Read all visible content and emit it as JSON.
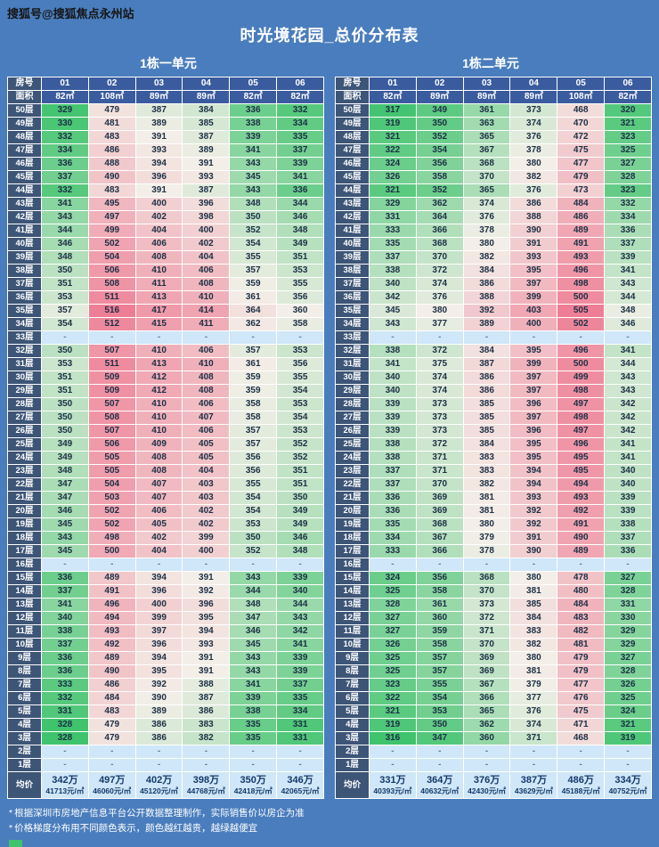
{
  "watermark": "搜狐号@搜狐焦点永州站",
  "title": "时光境花园_总价分布表",
  "notes": [
    {
      "bullet": "*",
      "text": "根据深圳市房地产信息平台公开数据整理制作，实际销售价以房企为准"
    },
    {
      "bullet": "*",
      "text": "价格梯度分布用不同颜色表示，颜色越红越贵，越绿越便宜"
    }
  ],
  "colors": {
    "page_bg": "#4a7dbd",
    "header_bg": "#3a5c9e",
    "floor_bg": "#3d5577",
    "empty_cell_bg": "#cfe7f8",
    "avg_bg": "#cfe7f8",
    "avg_text": "#14386c",
    "cell_text": "#1c2f45",
    "grad_low": "#3fc36d",
    "grad_mid": "#f3efe8",
    "grad_high": "#ee7e95",
    "border": "#ffffff",
    "note_text": "#ffffff",
    "watermark_text": "#151515"
  },
  "chart_data": [
    {
      "type": "heatmap",
      "title": "1栋一单元",
      "row_header": "房号",
      "area_header": "面积",
      "columns": [
        "01",
        "02",
        "03",
        "04",
        "05",
        "06"
      ],
      "area_labels": [
        "82㎡",
        "108㎡",
        "89㎡",
        "89㎡",
        "82㎡",
        "82㎡"
      ],
      "areas_sqm": [
        82,
        108,
        89,
        89,
        82,
        82
      ],
      "empty_placeholder": "-",
      "value_unit": "万",
      "floors": [
        "50层",
        "49层",
        "48层",
        "47层",
        "46层",
        "45层",
        "44层",
        "43层",
        "42层",
        "41层",
        "40层",
        "39层",
        "38层",
        "37层",
        "36层",
        "35层",
        "34层",
        "33层",
        "32层",
        "31层",
        "30层",
        "29层",
        "28层",
        "27层",
        "26层",
        "25层",
        "24层",
        "23层",
        "22层",
        "21层",
        "20层",
        "19层",
        "18层",
        "17层",
        "16层",
        "15层",
        "14层",
        "13层",
        "12层",
        "11层",
        "10层",
        "9层",
        "8层",
        "7层",
        "6层",
        "5层",
        "4层",
        "3层",
        "2层",
        "1层"
      ],
      "values": [
        [
          329,
          479,
          387,
          384,
          336,
          332
        ],
        [
          330,
          481,
          389,
          385,
          338,
          334
        ],
        [
          332,
          483,
          391,
          387,
          339,
          335
        ],
        [
          334,
          486,
          393,
          389,
          341,
          337
        ],
        [
          336,
          488,
          394,
          391,
          343,
          339
        ],
        [
          337,
          490,
          396,
          393,
          345,
          341
        ],
        [
          332,
          483,
          391,
          387,
          343,
          336
        ],
        [
          341,
          495,
          400,
          396,
          348,
          344
        ],
        [
          343,
          497,
          402,
          398,
          350,
          346
        ],
        [
          344,
          499,
          404,
          400,
          352,
          348
        ],
        [
          346,
          502,
          406,
          402,
          354,
          349
        ],
        [
          348,
          504,
          408,
          404,
          355,
          351
        ],
        [
          350,
          506,
          410,
          406,
          357,
          353
        ],
        [
          351,
          508,
          411,
          408,
          359,
          355
        ],
        [
          353,
          511,
          413,
          410,
          361,
          356
        ],
        [
          357,
          516,
          417,
          414,
          364,
          360
        ],
        [
          354,
          512,
          415,
          411,
          362,
          358
        ],
        null,
        [
          350,
          507,
          410,
          406,
          357,
          353
        ],
        [
          353,
          511,
          413,
          410,
          361,
          356
        ],
        [
          351,
          509,
          412,
          408,
          359,
          355
        ],
        [
          351,
          509,
          412,
          408,
          359,
          354
        ],
        [
          350,
          507,
          410,
          406,
          358,
          353
        ],
        [
          350,
          508,
          410,
          407,
          358,
          354
        ],
        [
          350,
          507,
          410,
          406,
          357,
          353
        ],
        [
          349,
          506,
          409,
          405,
          357,
          352
        ],
        [
          349,
          505,
          408,
          405,
          356,
          352
        ],
        [
          348,
          505,
          408,
          404,
          356,
          351
        ],
        [
          347,
          504,
          407,
          403,
          355,
          351
        ],
        [
          347,
          503,
          407,
          403,
          354,
          350
        ],
        [
          346,
          502,
          406,
          402,
          354,
          349
        ],
        [
          345,
          502,
          405,
          402,
          353,
          349
        ],
        [
          343,
          498,
          402,
          399,
          350,
          346
        ],
        [
          345,
          500,
          404,
          400,
          352,
          348
        ],
        null,
        [
          336,
          489,
          394,
          391,
          343,
          339
        ],
        [
          337,
          491,
          396,
          392,
          344,
          340
        ],
        [
          341,
          496,
          400,
          396,
          348,
          344
        ],
        [
          340,
          494,
          399,
          395,
          347,
          343
        ],
        [
          338,
          493,
          397,
          394,
          346,
          342
        ],
        [
          337,
          492,
          396,
          393,
          345,
          341
        ],
        [
          336,
          489,
          394,
          391,
          343,
          339
        ],
        [
          336,
          490,
          395,
          391,
          343,
          339
        ],
        [
          333,
          486,
          392,
          388,
          341,
          337
        ],
        [
          332,
          484,
          390,
          387,
          339,
          335
        ],
        [
          331,
          483,
          389,
          386,
          338,
          334
        ],
        [
          328,
          479,
          386,
          383,
          335,
          331
        ],
        [
          328,
          479,
          386,
          382,
          335,
          331
        ],
        null,
        null
      ],
      "average_label": "均价",
      "average_total": [
        "342万",
        "497万",
        "402万",
        "398万",
        "350万",
        "346万"
      ],
      "average_unit_price": [
        "41713元/㎡",
        "46060元/㎡",
        "45120元/㎡",
        "44768元/㎡",
        "42418元/㎡",
        "42065元/㎡"
      ]
    },
    {
      "type": "heatmap",
      "title": "1栋二单元",
      "row_header": "房号",
      "area_header": "面积",
      "columns": [
        "01",
        "02",
        "03",
        "04",
        "05",
        "06"
      ],
      "area_labels": [
        "82㎡",
        "89㎡",
        "89㎡",
        "89㎡",
        "108㎡",
        "82㎡"
      ],
      "areas_sqm": [
        82,
        89,
        89,
        89,
        108,
        82
      ],
      "empty_placeholder": "-",
      "value_unit": "万",
      "floors": [
        "50层",
        "49层",
        "48层",
        "47层",
        "46层",
        "45层",
        "44层",
        "43层",
        "42层",
        "41层",
        "40层",
        "39层",
        "38层",
        "37层",
        "36层",
        "35层",
        "34层",
        "33层",
        "32层",
        "31层",
        "30层",
        "29层",
        "28层",
        "27层",
        "26层",
        "25层",
        "24层",
        "23层",
        "22层",
        "21层",
        "20层",
        "19层",
        "18层",
        "17层",
        "16层",
        "15层",
        "14层",
        "13层",
        "12层",
        "11层",
        "10层",
        "9层",
        "8层",
        "7层",
        "6层",
        "5层",
        "4层",
        "3层",
        "2层",
        "1层"
      ],
      "values": [
        [
          317,
          349,
          361,
          373,
          468,
          320
        ],
        [
          319,
          350,
          363,
          374,
          470,
          321
        ],
        [
          321,
          352,
          365,
          376,
          472,
          323
        ],
        [
          322,
          354,
          367,
          378,
          475,
          325
        ],
        [
          324,
          356,
          368,
          380,
          477,
          327
        ],
        [
          326,
          358,
          370,
          382,
          479,
          328
        ],
        [
          321,
          352,
          365,
          376,
          473,
          323
        ],
        [
          329,
          362,
          374,
          386,
          484,
          332
        ],
        [
          331,
          364,
          376,
          388,
          486,
          334
        ],
        [
          333,
          366,
          378,
          390,
          489,
          336
        ],
        [
          335,
          368,
          380,
          391,
          491,
          337
        ],
        [
          337,
          370,
          382,
          393,
          493,
          339
        ],
        [
          338,
          372,
          384,
          395,
          496,
          341
        ],
        [
          340,
          374,
          386,
          397,
          498,
          343
        ],
        [
          342,
          376,
          388,
          399,
          500,
          344
        ],
        [
          345,
          380,
          392,
          403,
          505,
          348
        ],
        [
          343,
          377,
          389,
          400,
          502,
          346
        ],
        null,
        [
          338,
          372,
          384,
          395,
          496,
          341
        ],
        [
          341,
          375,
          387,
          399,
          500,
          344
        ],
        [
          340,
          374,
          386,
          397,
          499,
          343
        ],
        [
          340,
          374,
          386,
          397,
          498,
          343
        ],
        [
          339,
          373,
          385,
          396,
          497,
          342
        ],
        [
          339,
          373,
          385,
          397,
          498,
          342
        ],
        [
          339,
          373,
          385,
          396,
          497,
          342
        ],
        [
          338,
          372,
          384,
          395,
          496,
          341
        ],
        [
          338,
          371,
          383,
          395,
          495,
          341
        ],
        [
          337,
          371,
          383,
          394,
          495,
          340
        ],
        [
          337,
          370,
          382,
          394,
          494,
          340
        ],
        [
          336,
          369,
          381,
          393,
          493,
          339
        ],
        [
          336,
          369,
          381,
          392,
          492,
          339
        ],
        [
          335,
          368,
          380,
          392,
          491,
          338
        ],
        [
          334,
          367,
          379,
          391,
          490,
          337
        ],
        [
          333,
          366,
          378,
          390,
          489,
          336
        ],
        null,
        [
          324,
          356,
          368,
          380,
          478,
          327
        ],
        [
          325,
          358,
          370,
          381,
          480,
          328
        ],
        [
          328,
          361,
          373,
          385,
          484,
          331
        ],
        [
          327,
          360,
          372,
          384,
          483,
          330
        ],
        [
          327,
          359,
          371,
          383,
          482,
          329
        ],
        [
          326,
          358,
          370,
          382,
          481,
          329
        ],
        [
          325,
          357,
          369,
          380,
          479,
          327
        ],
        [
          325,
          357,
          369,
          381,
          479,
          328
        ],
        [
          323,
          355,
          367,
          379,
          477,
          326
        ],
        [
          322,
          354,
          366,
          377,
          476,
          325
        ],
        [
          321,
          353,
          365,
          376,
          475,
          324
        ],
        [
          319,
          350,
          362,
          374,
          471,
          321
        ],
        [
          316,
          347,
          360,
          371,
          468,
          319
        ],
        null,
        null
      ],
      "average_label": "均价",
      "average_total": [
        "331万",
        "364万",
        "376万",
        "387万",
        "486万",
        "334万"
      ],
      "average_unit_price": [
        "40393元/㎡",
        "40632元/㎡",
        "42430元/㎡",
        "43629元/㎡",
        "45188元/㎡",
        "40752元/㎡"
      ]
    }
  ]
}
